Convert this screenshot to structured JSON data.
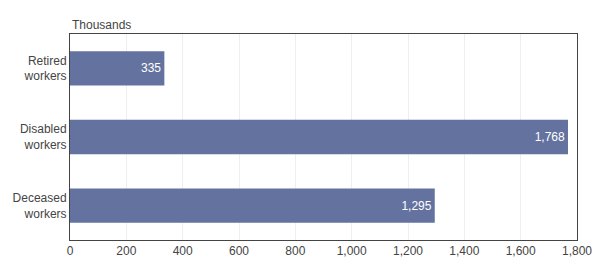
{
  "chart_data": {
    "type": "bar",
    "orientation": "horizontal",
    "xlabel": "Thousands",
    "categories": [
      "Retired\nworkers",
      "Disabled\nworkers",
      "Deceased\nworkers"
    ],
    "values": [
      335,
      1768,
      1295
    ],
    "value_labels": [
      "335",
      "1,768",
      "1,295"
    ],
    "data_labels": true,
    "color": "#6472a0",
    "xlim": [
      0,
      1800
    ],
    "xticks": [
      0,
      200,
      400,
      600,
      800,
      {
        "value": 1000,
        "label": "1,000"
      },
      {
        "value": 1200,
        "label": "1,200"
      },
      {
        "value": 1400,
        "label": "1,400"
      },
      {
        "value": 1600,
        "label": "1,600"
      },
      {
        "value": 1800,
        "label": "1,800"
      }
    ],
    "grid": true
  }
}
